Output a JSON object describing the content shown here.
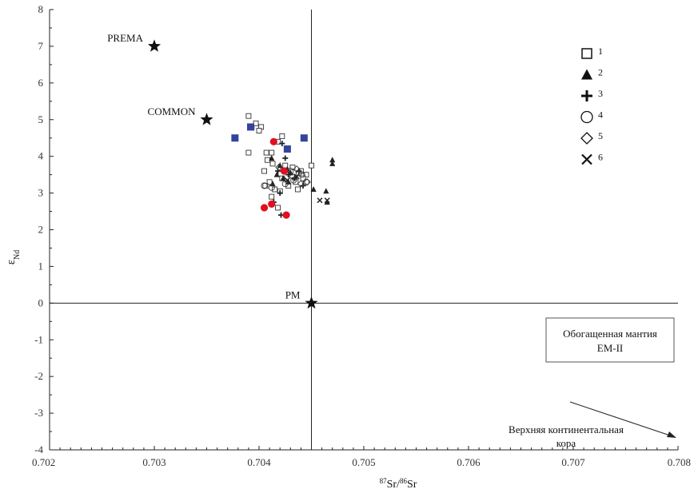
{
  "chart_data": {
    "type": "scatter",
    "xlabel": "87Sr/86Sr",
    "ylabel": "εNd",
    "xlim": [
      0.702,
      0.708
    ],
    "ylim": [
      -4,
      8
    ],
    "x_ticks": [
      0.702,
      0.703,
      0.704,
      0.705,
      0.706,
      0.707,
      0.708
    ],
    "x_tick_labels": [
      "0.702",
      "0.703",
      "0.704",
      "0.705",
      "0.706",
      "0.707",
      "0.708"
    ],
    "y_ticks": [
      -4,
      -3,
      -2,
      -1,
      0,
      1,
      2,
      3,
      4,
      5,
      6,
      7,
      8
    ],
    "y_tick_labels": [
      "-4",
      "-3",
      "-2",
      "-1",
      "0",
      "1",
      "2",
      "3",
      "4",
      "5",
      "6",
      "7",
      "8"
    ],
    "reference_lines": {
      "x": 0.7045,
      "y": 0
    },
    "reference_points": [
      {
        "label": "PREMA",
        "x": 0.703,
        "y": 7.0
      },
      {
        "label": "COMMON",
        "x": 0.7035,
        "y": 5.0
      },
      {
        "label": "PM",
        "x": 0.7045,
        "y": 0.0
      }
    ],
    "legend": [
      {
        "symbol": "square",
        "label": "1"
      },
      {
        "symbol": "triangle",
        "label": "2"
      },
      {
        "symbol": "plus",
        "label": "3"
      },
      {
        "symbol": "circle",
        "label": "4"
      },
      {
        "symbol": "diamond",
        "label": "5"
      },
      {
        "symbol": "cross",
        "label": "6"
      }
    ],
    "series": [
      {
        "symbol": "square",
        "points": [
          [
            0.7039,
            5.1
          ],
          [
            0.70393,
            4.8
          ],
          [
            0.70397,
            4.9
          ],
          [
            0.70402,
            4.8
          ],
          [
            0.704,
            4.7
          ],
          [
            0.7039,
            4.1
          ],
          [
            0.70407,
            4.1
          ],
          [
            0.70412,
            4.1
          ],
          [
            0.70418,
            4.4
          ],
          [
            0.70422,
            4.55
          ],
          [
            0.70408,
            3.9
          ],
          [
            0.70413,
            3.8
          ],
          [
            0.70425,
            3.75
          ],
          [
            0.70432,
            3.7
          ],
          [
            0.7044,
            3.6
          ],
          [
            0.70445,
            3.5
          ],
          [
            0.7045,
            3.75
          ],
          [
            0.70405,
            3.6
          ],
          [
            0.7041,
            3.3
          ],
          [
            0.70406,
            3.2
          ],
          [
            0.70415,
            3.1
          ],
          [
            0.7042,
            3.05
          ],
          [
            0.70418,
            2.6
          ],
          [
            0.70412,
            2.9
          ],
          [
            0.70437,
            3.1
          ],
          [
            0.70428,
            3.2
          ],
          [
            0.70442,
            3.4
          ],
          [
            0.70435,
            3.3
          ],
          [
            0.70422,
            3.4
          ]
        ]
      },
      {
        "symbol": "triangle",
        "points": [
          [
            0.70412,
            3.95
          ],
          [
            0.7042,
            3.75
          ],
          [
            0.70427,
            3.65
          ],
          [
            0.7043,
            3.55
          ],
          [
            0.70423,
            3.4
          ],
          [
            0.70417,
            3.5
          ],
          [
            0.70413,
            3.25
          ],
          [
            0.70428,
            3.3
          ],
          [
            0.70452,
            3.1
          ],
          [
            0.70464,
            3.05
          ],
          [
            0.7047,
            3.8
          ],
          [
            0.7047,
            3.9
          ],
          [
            0.70465,
            2.75
          ]
        ]
      },
      {
        "symbol": "plus",
        "points": [
          [
            0.70422,
            4.35
          ],
          [
            0.70425,
            3.95
          ],
          [
            0.70418,
            3.6
          ],
          [
            0.70428,
            3.5
          ],
          [
            0.70434,
            3.4
          ],
          [
            0.7042,
            3.0
          ],
          [
            0.70414,
            2.75
          ],
          [
            0.70421,
            2.4
          ],
          [
            0.70438,
            3.6
          ],
          [
            0.70442,
            3.2
          ]
        ]
      },
      {
        "symbol": "circle",
        "points": [
          [
            0.70405,
            3.2
          ],
          [
            0.70412,
            3.15
          ],
          [
            0.70438,
            3.55
          ],
          [
            0.70441,
            3.5
          ],
          [
            0.70445,
            3.3
          ],
          [
            0.70433,
            3.35
          ],
          [
            0.70425,
            3.25
          ],
          [
            0.7043,
            3.6
          ]
        ]
      },
      {
        "symbol": "diamond",
        "points": [
          [
            0.70446,
            3.3
          ],
          [
            0.7044,
            3.25
          ],
          [
            0.70432,
            3.45
          ],
          [
            0.70419,
            3.7
          ],
          [
            0.70436,
            3.65
          ]
        ]
      },
      {
        "symbol": "cross",
        "points": [
          [
            0.70458,
            2.8
          ],
          [
            0.70465,
            2.8
          ],
          [
            0.70427,
            3.35
          ],
          [
            0.70436,
            3.45
          ]
        ]
      },
      {
        "symbol": "filled-square-blue",
        "color": "#33449a",
        "points": [
          [
            0.70377,
            4.5
          ],
          [
            0.70392,
            4.8
          ],
          [
            0.70427,
            4.2
          ],
          [
            0.70443,
            4.5
          ]
        ]
      },
      {
        "symbol": "filled-circle-red",
        "color": "#e01020",
        "points": [
          [
            0.70414,
            4.4
          ],
          [
            0.70424,
            3.6
          ],
          [
            0.70405,
            2.6
          ],
          [
            0.70412,
            2.7
          ],
          [
            0.70426,
            2.4
          ]
        ]
      }
    ],
    "annotations": {
      "enriched_mantle": [
        "Обогащенная мантия",
        "EM-II"
      ],
      "upper_crust": [
        "Верхняя континентальная",
        "кора"
      ]
    }
  }
}
